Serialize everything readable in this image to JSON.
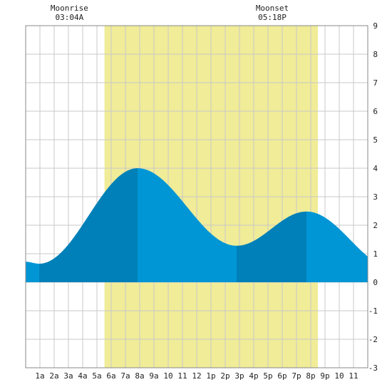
{
  "chart_data": {
    "type": "area",
    "title": "",
    "xlabel": "",
    "ylabel": "",
    "x_range_hours": [
      0,
      24
    ],
    "ylim": [
      -3,
      9
    ],
    "y_ticks": [
      -3,
      -2,
      -1,
      0,
      1,
      2,
      3,
      4,
      5,
      6,
      7,
      8,
      9
    ],
    "x_tick_labels": [
      {
        "hour": 1,
        "label": "1a"
      },
      {
        "hour": 2,
        "label": "2a"
      },
      {
        "hour": 3,
        "label": "3a"
      },
      {
        "hour": 4,
        "label": "4a"
      },
      {
        "hour": 5,
        "label": "5a"
      },
      {
        "hour": 6,
        "label": "6a"
      },
      {
        "hour": 7,
        "label": "7a"
      },
      {
        "hour": 8,
        "label": "8a"
      },
      {
        "hour": 9,
        "label": "9a"
      },
      {
        "hour": 10,
        "label": "10"
      },
      {
        "hour": 11,
        "label": "11"
      },
      {
        "hour": 12,
        "label": "12"
      },
      {
        "hour": 13,
        "label": "1p"
      },
      {
        "hour": 14,
        "label": "2p"
      },
      {
        "hour": 15,
        "label": "3p"
      },
      {
        "hour": 16,
        "label": "4p"
      },
      {
        "hour": 17,
        "label": "5p"
      },
      {
        "hour": 18,
        "label": "6p"
      },
      {
        "hour": 19,
        "label": "7p"
      },
      {
        "hour": 20,
        "label": "8p"
      },
      {
        "hour": 21,
        "label": "9p"
      },
      {
        "hour": 22,
        "label": "10"
      },
      {
        "hour": 23,
        "label": "11"
      }
    ],
    "daylight": {
      "start_hour": 5.53,
      "end_hour": 20.5
    },
    "extremes": [
      {
        "hour": 0.95,
        "value": 0.65,
        "type": "low"
      },
      {
        "hour": 7.85,
        "value": 4.0,
        "type": "high"
      },
      {
        "hour": 14.8,
        "value": 1.28,
        "type": "low"
      },
      {
        "hour": 19.7,
        "value": 2.48,
        "type": "high"
      }
    ],
    "start": {
      "hour": 0,
      "value": 0.72
    },
    "end": {
      "hour": 24,
      "value": 0.92
    },
    "moon_events": [
      {
        "event": "Moonrise",
        "time": "03:04A",
        "hour": 3.07
      },
      {
        "event": "Moonset",
        "time": "05:18P",
        "hour": 17.3
      }
    ],
    "colors": {
      "daylight": "#f0ec98",
      "tide_light": "#0096d6",
      "tide_dark": "#0080b8",
      "grid": "#c8c8c8",
      "border": "#888888"
    }
  }
}
